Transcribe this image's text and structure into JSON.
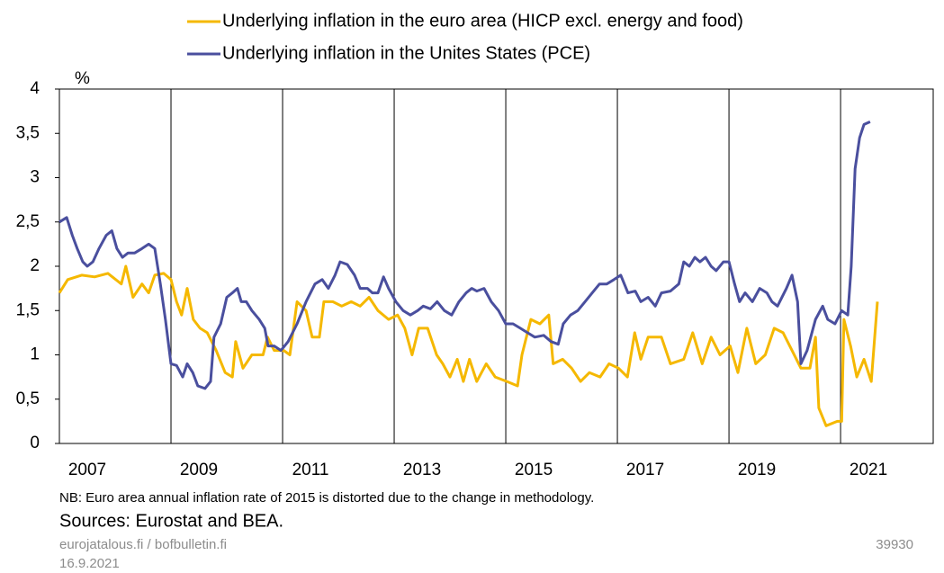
{
  "chart_data": {
    "type": "line",
    "y_unit_label": "%",
    "xlim": [
      2007,
      2022.66
    ],
    "ylim": [
      0,
      4
    ],
    "xticks": [
      2007,
      2009,
      2011,
      2013,
      2015,
      2017,
      2019,
      2021
    ],
    "yticks": [
      0,
      {
        "value": 0.5,
        "label": "0,5"
      },
      1,
      {
        "value": 1.5,
        "label": "1,5"
      },
      2,
      {
        "value": 2.5,
        "label": "2,5"
      },
      3,
      {
        "value": 3.5,
        "label": "3,5"
      },
      4
    ],
    "grid": "x",
    "legend": "top",
    "series": [
      {
        "name": "Underlying inflation in the euro area (HICP excl. energy and food)",
        "color": "#f5b800",
        "x": [
          2007.0,
          2007.15,
          2007.4,
          2007.63,
          2007.87,
          2008.11,
          2008.19,
          2008.32,
          2008.48,
          2008.6,
          2008.71,
          2008.87,
          2009.0,
          2009.1,
          2009.19,
          2009.29,
          2009.4,
          2009.52,
          2009.65,
          2009.81,
          2009.97,
          2010.1,
          2010.16,
          2010.29,
          2010.45,
          2010.65,
          2010.73,
          2010.85,
          2011.02,
          2011.13,
          2011.26,
          2011.42,
          2011.53,
          2011.66,
          2011.74,
          2011.9,
          2012.06,
          2012.23,
          2012.39,
          2012.55,
          2012.71,
          2012.9,
          2013.06,
          2013.19,
          2013.32,
          2013.44,
          2013.6,
          2013.76,
          2013.87,
          2014.0,
          2014.13,
          2014.24,
          2014.35,
          2014.48,
          2014.65,
          2014.81,
          2015.02,
          2015.21,
          2015.29,
          2015.45,
          2015.61,
          2015.77,
          2015.85,
          2016.02,
          2016.18,
          2016.34,
          2016.5,
          2016.69,
          2016.85,
          2017.02,
          2017.18,
          2017.31,
          2017.42,
          2017.55,
          2017.79,
          2017.95,
          2018.19,
          2018.35,
          2018.52,
          2018.68,
          2018.84,
          2019.02,
          2019.16,
          2019.32,
          2019.48,
          2019.65,
          2019.81,
          2019.97,
          2020.13,
          2020.29,
          2020.45,
          2020.55,
          2020.61,
          2020.74,
          2020.94,
          2021.02,
          2021.06,
          2021.18,
          2021.29,
          2021.42,
          2021.55,
          2021.66
        ],
        "values": [
          1.7,
          1.85,
          1.9,
          1.88,
          1.92,
          1.8,
          2.0,
          1.65,
          1.8,
          1.7,
          1.9,
          1.92,
          1.85,
          1.6,
          1.45,
          1.75,
          1.4,
          1.3,
          1.25,
          1.05,
          0.8,
          0.75,
          1.15,
          0.85,
          1.0,
          1.0,
          1.2,
          1.05,
          1.05,
          1.0,
          1.6,
          1.5,
          1.2,
          1.2,
          1.6,
          1.6,
          1.55,
          1.6,
          1.55,
          1.65,
          1.5,
          1.4,
          1.45,
          1.3,
          1.0,
          1.3,
          1.3,
          1.0,
          0.9,
          0.75,
          0.95,
          0.7,
          0.95,
          0.7,
          0.9,
          0.75,
          0.7,
          0.65,
          1.0,
          1.4,
          1.35,
          1.45,
          0.9,
          0.95,
          0.85,
          0.7,
          0.8,
          0.75,
          0.9,
          0.85,
          0.75,
          1.25,
          0.95,
          1.2,
          1.2,
          0.9,
          0.95,
          1.25,
          0.9,
          1.2,
          1.0,
          1.1,
          0.8,
          1.3,
          0.9,
          1.0,
          1.3,
          1.25,
          1.05,
          0.85,
          0.85,
          1.2,
          0.4,
          0.2,
          0.25,
          0.25,
          1.4,
          1.1,
          0.75,
          0.95,
          0.7,
          1.6
        ]
      },
      {
        "name": "Underlying inflation in the Unites States (PCE)",
        "color": "#4a4f9e",
        "x": [
          2007.0,
          2007.13,
          2007.23,
          2007.32,
          2007.42,
          2007.5,
          2007.6,
          2007.71,
          2007.84,
          2007.94,
          2008.03,
          2008.13,
          2008.23,
          2008.35,
          2008.48,
          2008.6,
          2008.71,
          2008.81,
          2008.9,
          2009.0,
          2009.1,
          2009.21,
          2009.29,
          2009.39,
          2009.48,
          2009.61,
          2009.71,
          2009.77,
          2009.89,
          2010.0,
          2010.1,
          2010.19,
          2010.26,
          2010.35,
          2010.45,
          2010.58,
          2010.68,
          2010.74,
          2010.85,
          2010.97,
          2011.1,
          2011.26,
          2011.42,
          2011.58,
          2011.71,
          2011.82,
          2011.94,
          2012.03,
          2012.16,
          2012.29,
          2012.39,
          2012.52,
          2012.61,
          2012.71,
          2012.81,
          2012.9,
          2013.03,
          2013.16,
          2013.29,
          2013.42,
          2013.52,
          2013.65,
          2013.77,
          2013.9,
          2014.03,
          2014.16,
          2014.29,
          2014.39,
          2014.48,
          2014.61,
          2014.74,
          2014.87,
          2015.0,
          2015.13,
          2015.26,
          2015.39,
          2015.52,
          2015.68,
          2015.81,
          2015.94,
          2016.03,
          2016.16,
          2016.29,
          2016.42,
          2016.55,
          2016.68,
          2016.81,
          2016.94,
          2017.06,
          2017.19,
          2017.32,
          2017.42,
          2017.55,
          2017.68,
          2017.79,
          2017.95,
          2018.1,
          2018.19,
          2018.29,
          2018.39,
          2018.48,
          2018.58,
          2018.68,
          2018.77,
          2018.9,
          2019.0,
          2019.1,
          2019.19,
          2019.29,
          2019.42,
          2019.55,
          2019.68,
          2019.77,
          2019.87,
          2020.03,
          2020.13,
          2020.23,
          2020.29,
          2020.4,
          2020.55,
          2020.68,
          2020.77,
          2020.9,
          2021.02,
          2021.13,
          2021.19,
          2021.26,
          2021.34,
          2021.42,
          2021.53
        ],
        "values": [
          2.5,
          2.55,
          2.35,
          2.2,
          2.05,
          2.0,
          2.05,
          2.2,
          2.35,
          2.4,
          2.2,
          2.1,
          2.15,
          2.15,
          2.2,
          2.25,
          2.2,
          1.8,
          1.4,
          0.9,
          0.88,
          0.75,
          0.9,
          0.8,
          0.65,
          0.62,
          0.7,
          1.2,
          1.35,
          1.65,
          1.7,
          1.75,
          1.6,
          1.6,
          1.5,
          1.4,
          1.3,
          1.1,
          1.1,
          1.05,
          1.15,
          1.35,
          1.6,
          1.8,
          1.85,
          1.75,
          1.9,
          2.05,
          2.02,
          1.9,
          1.75,
          1.75,
          1.7,
          1.7,
          1.88,
          1.75,
          1.6,
          1.5,
          1.45,
          1.5,
          1.55,
          1.52,
          1.6,
          1.5,
          1.45,
          1.6,
          1.7,
          1.75,
          1.72,
          1.75,
          1.6,
          1.5,
          1.35,
          1.35,
          1.3,
          1.25,
          1.2,
          1.22,
          1.15,
          1.12,
          1.35,
          1.45,
          1.5,
          1.6,
          1.7,
          1.8,
          1.8,
          1.85,
          1.9,
          1.7,
          1.72,
          1.6,
          1.65,
          1.55,
          1.7,
          1.72,
          1.8,
          2.05,
          2.0,
          2.1,
          2.05,
          2.1,
          2.0,
          1.95,
          2.05,
          2.05,
          1.8,
          1.6,
          1.7,
          1.6,
          1.75,
          1.7,
          1.6,
          1.55,
          1.75,
          1.9,
          1.6,
          0.9,
          1.05,
          1.4,
          1.55,
          1.4,
          1.35,
          1.5,
          1.45,
          2.0,
          3.1,
          3.45,
          3.6,
          3.63
        ]
      }
    ],
    "note": "NB: Euro area annual  inflation rate of 2015 is distorted due to the change in methodology.",
    "sources": "Sources: Eurostat and BEA.",
    "website": "eurojatalous.fi / bofbulletin.fi",
    "date": "16.9.2021",
    "chart_id": "39930"
  }
}
